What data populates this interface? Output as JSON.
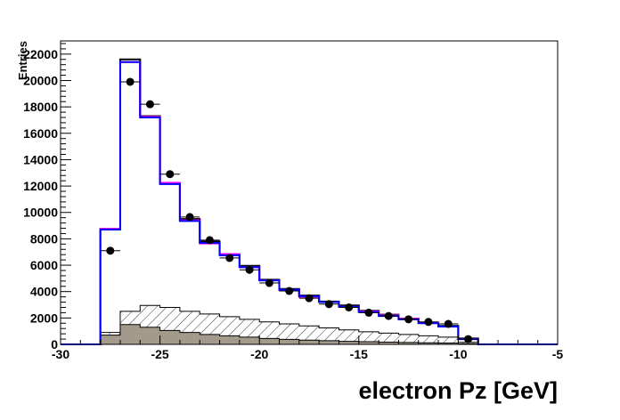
{
  "chart_data": {
    "type": "histogram",
    "title": "",
    "xlabel": "electron Pz [GeV]",
    "ylabel": "Entries",
    "xlim": [
      -30,
      -5
    ],
    "ylim": [
      0,
      23000
    ],
    "grid": false,
    "legend": "none",
    "x_ticks": [
      -30,
      -25,
      -20,
      -15,
      -10,
      -5
    ],
    "y_ticks": [
      0,
      2000,
      4000,
      6000,
      8000,
      10000,
      12000,
      14000,
      16000,
      18000,
      20000,
      22000
    ],
    "bin_edges": [
      -28,
      -27,
      -26,
      -25,
      -24,
      -23,
      -22,
      -21,
      -20,
      -19,
      -18,
      -17,
      -16,
      -15,
      -14,
      -13,
      -12,
      -11,
      -10,
      -9
    ],
    "series": [
      {
        "kind": "step-black",
        "color": "#000000",
        "values": [
          8750,
          21600,
          17300,
          12200,
          9500,
          7800,
          6800,
          5950,
          4900,
          4200,
          3700,
          3250,
          2950,
          2550,
          2250,
          1950,
          1650,
          1400,
          450
        ]
      },
      {
        "kind": "step-magenta",
        "color": "#ff00ff",
        "values": [
          8750,
          21400,
          17250,
          12250,
          9400,
          7650,
          6850,
          5850,
          4850,
          4100,
          3600,
          3200,
          2850,
          2500,
          2200,
          1950,
          1650,
          1350,
          400
        ]
      },
      {
        "kind": "step-blue",
        "color": "#0000ff",
        "values": [
          8700,
          21400,
          17200,
          12150,
          9350,
          7700,
          6750,
          5850,
          4850,
          4150,
          3650,
          3200,
          2850,
          2450,
          2150,
          1900,
          1600,
          1350,
          400
        ]
      },
      {
        "kind": "hatched",
        "color": "#000000",
        "values": [
          900,
          2500,
          2950,
          2800,
          2500,
          2300,
          2100,
          1900,
          1700,
          1550,
          1400,
          1250,
          1100,
          950,
          850,
          750,
          650,
          550,
          150
        ]
      },
      {
        "kind": "filled",
        "color": "#a39a8c",
        "values": [
          700,
          1500,
          1300,
          1050,
          900,
          750,
          650,
          550,
          450,
          380,
          320,
          280,
          230,
          200,
          170,
          140,
          120,
          100,
          40
        ]
      },
      {
        "kind": "points",
        "color": "#000000",
        "x": [
          -27.5,
          -26.5,
          -25.5,
          -24.5,
          -23.5,
          -22.5,
          -21.5,
          -20.5,
          -19.5,
          -18.5,
          -17.5,
          -16.5,
          -15.5,
          -14.5,
          -13.5,
          -12.5,
          -11.5,
          -10.5,
          -9.5
        ],
        "values": [
          7100,
          19900,
          18200,
          12900,
          9650,
          7900,
          6550,
          5650,
          4650,
          4050,
          3500,
          3050,
          2800,
          2400,
          2150,
          1900,
          1700,
          1550,
          400
        ]
      }
    ]
  }
}
